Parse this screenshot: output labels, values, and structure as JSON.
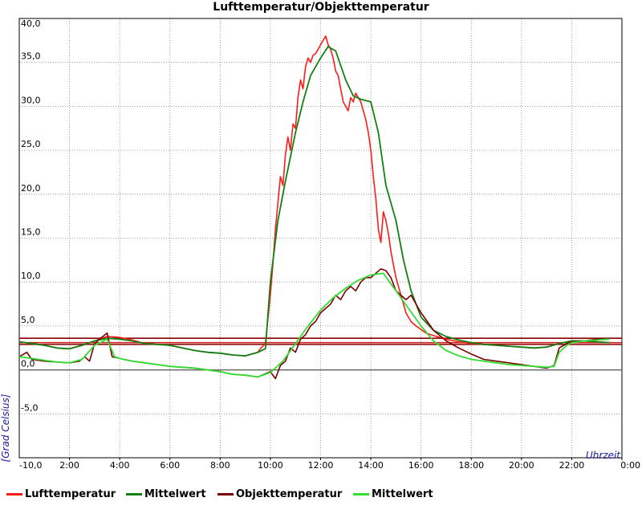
{
  "chart_data": {
    "type": "line",
    "title": "Lufttemperatur/Objekttemperatur",
    "ylabel": "[Grad Celsius]",
    "xlabel": "Uhrzeit",
    "xlim": [
      0,
      24
    ],
    "ylim": [
      -10,
      40
    ],
    "y_ticks": [
      {
        "value": -10,
        "label": "-10,0"
      },
      {
        "value": -5,
        "label": "-5,0"
      },
      {
        "value": 0,
        "label": "0,0"
      },
      {
        "value": 5,
        "label": "5,0"
      },
      {
        "value": 10,
        "label": "10,0"
      },
      {
        "value": 15,
        "label": "15,0"
      },
      {
        "value": 20,
        "label": "20,0"
      },
      {
        "value": 25,
        "label": "25,0"
      },
      {
        "value": 30,
        "label": "30,0"
      },
      {
        "value": 35,
        "label": "35,0"
      },
      {
        "value": 40,
        "label": "40,0"
      }
    ],
    "x_ticks": [
      {
        "value": 2,
        "label": "2:00"
      },
      {
        "value": 4,
        "label": "4:00"
      },
      {
        "value": 6,
        "label": "6:00"
      },
      {
        "value": 8,
        "label": "8:00"
      },
      {
        "value": 10,
        "label": "10:00"
      },
      {
        "value": 12,
        "label": "12:00"
      },
      {
        "value": 14,
        "label": "14:00"
      },
      {
        "value": 16,
        "label": "16:00"
      },
      {
        "value": 18,
        "label": "18:00"
      },
      {
        "value": 20,
        "label": "20:00"
      },
      {
        "value": 22,
        "label": "22:00"
      },
      {
        "value": 24,
        "label": "0:00"
      }
    ],
    "grid": true,
    "legend_position": "bottom",
    "reference_lines": [
      {
        "y": 2.9,
        "color": "#8b0000"
      },
      {
        "y": 3.6,
        "color": "#8b0000"
      },
      {
        "y": 3.1,
        "color": "#cc2222"
      }
    ],
    "series": [
      {
        "name": "Lufttemperatur",
        "color": "#ff1a1a",
        "width": 1.6,
        "x": [
          0,
          0.5,
          1,
          1.5,
          2,
          2.5,
          3,
          3.5,
          4,
          4.5,
          5,
          5.5,
          6,
          6.5,
          7,
          7.5,
          8,
          8.5,
          9,
          9.5,
          9.6,
          9.8,
          10,
          10.1,
          10.2,
          10.3,
          10.4,
          10.5,
          10.6,
          10.7,
          10.8,
          10.9,
          11,
          11.1,
          11.2,
          11.3,
          11.4,
          11.5,
          11.6,
          11.7,
          11.8,
          11.9,
          12,
          12.1,
          12.2,
          12.3,
          12.4,
          12.5,
          12.6,
          12.7,
          12.8,
          12.9,
          13,
          13.1,
          13.2,
          13.3,
          13.4,
          13.5,
          13.6,
          13.7,
          13.8,
          13.9,
          14,
          14.1,
          14.2,
          14.3,
          14.4,
          14.5,
          14.6,
          14.7,
          14.8,
          14.9,
          15,
          15.1,
          15.2,
          15.3,
          15.4,
          15.5,
          15.6,
          15.8,
          16,
          16.2,
          16.5,
          17,
          17.5,
          18,
          18.5,
          19,
          19.5,
          20,
          20.5,
          21,
          21.5,
          22,
          22.5,
          23,
          23.5
        ],
        "values": [
          3.2,
          3.0,
          2.8,
          2.5,
          2.4,
          2.8,
          3.3,
          3.8,
          3.7,
          3.4,
          3.0,
          2.9,
          2.8,
          2.5,
          2.2,
          2.0,
          1.9,
          1.7,
          1.6,
          2.0,
          2.4,
          3.0,
          8.5,
          12.0,
          16.0,
          19.0,
          22.0,
          21.0,
          24.5,
          26.5,
          25.0,
          28.0,
          27.5,
          31.0,
          33.0,
          32.0,
          34.5,
          35.5,
          35.0,
          35.8,
          36.0,
          36.5,
          37.0,
          37.5,
          38.0,
          37.0,
          36.5,
          35.5,
          34.0,
          33.5,
          32.0,
          30.5,
          30.0,
          29.5,
          31.0,
          30.5,
          31.5,
          31.0,
          30.5,
          29.5,
          28.5,
          27.0,
          25.0,
          22.0,
          19.5,
          16.0,
          14.5,
          18.0,
          17.0,
          15.5,
          13.5,
          12.0,
          10.5,
          9.5,
          8.5,
          7.5,
          6.5,
          6.0,
          5.5,
          5.0,
          4.6,
          4.2,
          3.9,
          3.5,
          3.2,
          3.0,
          2.9,
          2.8,
          2.7,
          2.6,
          2.5,
          2.6,
          3.0,
          3.3,
          3.3,
          3.2,
          3.1
        ]
      },
      {
        "name": "Mittelwert",
        "color": "#138013",
        "width": 1.8,
        "x": [
          0,
          0.5,
          1,
          1.5,
          2,
          2.5,
          3,
          3.5,
          4,
          4.5,
          5,
          5.5,
          6,
          6.5,
          7,
          7.5,
          8,
          8.5,
          9,
          9.5,
          9.8,
          10,
          10.3,
          10.6,
          11,
          11.3,
          11.6,
          12,
          12.3,
          12.6,
          13,
          13.3,
          13.6,
          14,
          14.3,
          14.6,
          15,
          15.3,
          15.6,
          16,
          16.5,
          17,
          17.5,
          18,
          18.5,
          19,
          19.5,
          20,
          20.5,
          21,
          21.5,
          22,
          22.5,
          23,
          23.5
        ],
        "values": [
          3.2,
          3.0,
          2.8,
          2.5,
          2.4,
          2.8,
          3.3,
          3.6,
          3.5,
          3.3,
          3.0,
          2.9,
          2.8,
          2.5,
          2.2,
          2.0,
          1.9,
          1.7,
          1.6,
          2.0,
          2.4,
          10.0,
          17.0,
          21.5,
          27.0,
          30.5,
          33.5,
          35.5,
          36.8,
          36.3,
          33.0,
          31.2,
          30.8,
          30.5,
          27.0,
          21.0,
          17.0,
          12.5,
          9.0,
          6.0,
          4.5,
          3.8,
          3.4,
          3.1,
          2.9,
          2.8,
          2.7,
          2.6,
          2.5,
          2.6,
          3.0,
          3.3,
          3.3,
          3.2,
          3.1
        ]
      },
      {
        "name": "Objekttemperatur",
        "color": "#7a0000",
        "width": 1.6,
        "x": [
          0,
          0.3,
          0.5,
          1,
          1.5,
          2,
          2.4,
          2.6,
          2.8,
          3,
          3.2,
          3.5,
          3.7,
          4,
          4.5,
          5,
          5.5,
          6,
          6.5,
          7,
          7.5,
          8,
          8.5,
          9,
          9.5,
          10,
          10.2,
          10.4,
          10.6,
          10.8,
          11,
          11.2,
          11.4,
          11.6,
          11.8,
          12,
          12.2,
          12.4,
          12.6,
          12.8,
          13,
          13.2,
          13.4,
          13.6,
          13.8,
          14,
          14.2,
          14.4,
          14.6,
          14.8,
          15,
          15.2,
          15.4,
          15.6,
          15.8,
          16,
          16.5,
          17,
          17.5,
          18,
          18.5,
          19,
          19.5,
          20,
          20.5,
          21,
          21.3,
          21.5,
          21.8,
          22,
          22.5,
          23,
          23.5
        ],
        "values": [
          1.5,
          2.0,
          1.2,
          1.0,
          0.9,
          0.8,
          1.0,
          1.5,
          1.0,
          3.0,
          3.5,
          4.2,
          1.5,
          1.3,
          1.0,
          0.8,
          0.6,
          0.4,
          0.3,
          0.2,
          0.0,
          -0.2,
          -0.5,
          -0.6,
          -0.8,
          -0.2,
          -1.0,
          0.5,
          1.0,
          2.5,
          2.0,
          3.5,
          4.0,
          5.0,
          5.5,
          6.5,
          7.0,
          7.5,
          8.5,
          8.0,
          9.0,
          9.5,
          9.0,
          10.0,
          10.5,
          10.5,
          11.0,
          11.5,
          11.3,
          10.5,
          9.0,
          8.5,
          8.0,
          8.5,
          7.5,
          6.5,
          4.5,
          3.3,
          2.5,
          1.8,
          1.2,
          1.0,
          0.8,
          0.6,
          0.4,
          0.2,
          0.5,
          2.5,
          3.0,
          3.2,
          3.3,
          3.5,
          3.6
        ]
      },
      {
        "name": "Mittelwert",
        "color": "#33dd33",
        "width": 1.8,
        "x": [
          0,
          0.5,
          1,
          1.5,
          2,
          2.5,
          3,
          3.5,
          3.8,
          4,
          4.5,
          5,
          5.5,
          6,
          6.5,
          7,
          7.5,
          8,
          8.5,
          9,
          9.5,
          10,
          10.5,
          11,
          11.5,
          12,
          12.5,
          13,
          13.5,
          14,
          14.5,
          15,
          15.5,
          16,
          16.5,
          17,
          17.5,
          18,
          18.5,
          19,
          19.5,
          20,
          20.5,
          21,
          21.3,
          21.5,
          21.8,
          22,
          22.5,
          23,
          23.5
        ],
        "values": [
          1.5,
          1.3,
          1.1,
          0.9,
          0.8,
          1.2,
          2.8,
          3.5,
          1.5,
          1.3,
          1.0,
          0.8,
          0.6,
          0.4,
          0.3,
          0.2,
          0.0,
          -0.2,
          -0.5,
          -0.6,
          -0.8,
          -0.3,
          1.0,
          3.0,
          5.0,
          6.8,
          8.2,
          9.3,
          10.2,
          10.8,
          11.0,
          9.0,
          7.0,
          5.0,
          3.3,
          2.2,
          1.6,
          1.2,
          1.0,
          0.8,
          0.6,
          0.5,
          0.4,
          0.3,
          0.4,
          2.0,
          2.8,
          3.1,
          3.3,
          3.4,
          3.5
        ]
      }
    ]
  }
}
